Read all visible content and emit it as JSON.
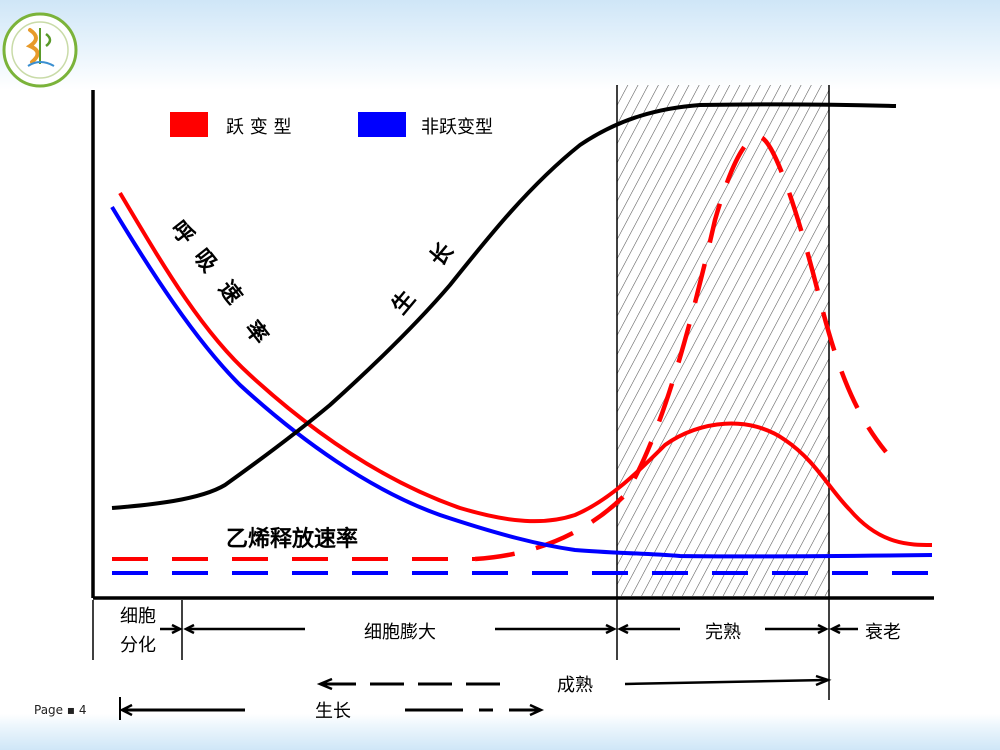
{
  "legend": {
    "climacteric": "跃 变 型",
    "non_climacteric": "非跃变型"
  },
  "curve_labels": {
    "respiration": [
      "呼",
      "吸",
      "速",
      "率"
    ],
    "growth": [
      "生",
      "长"
    ],
    "ethylene": "乙烯释放速率"
  },
  "stages": {
    "differentiation_line1": "细胞",
    "differentiation_line2": "分化",
    "expansion": "细胞膨大",
    "ripening": "完熟",
    "senescence": "衰老"
  },
  "spans": {
    "maturation": "成熟",
    "growth": "生长"
  },
  "footer": {
    "page": "Page ▪ 4"
  },
  "colors": {
    "climacteric": "#ff0000",
    "non_climacteric": "#0000ff",
    "growth": "#000000",
    "band_top": "#cfe6f7"
  }
}
